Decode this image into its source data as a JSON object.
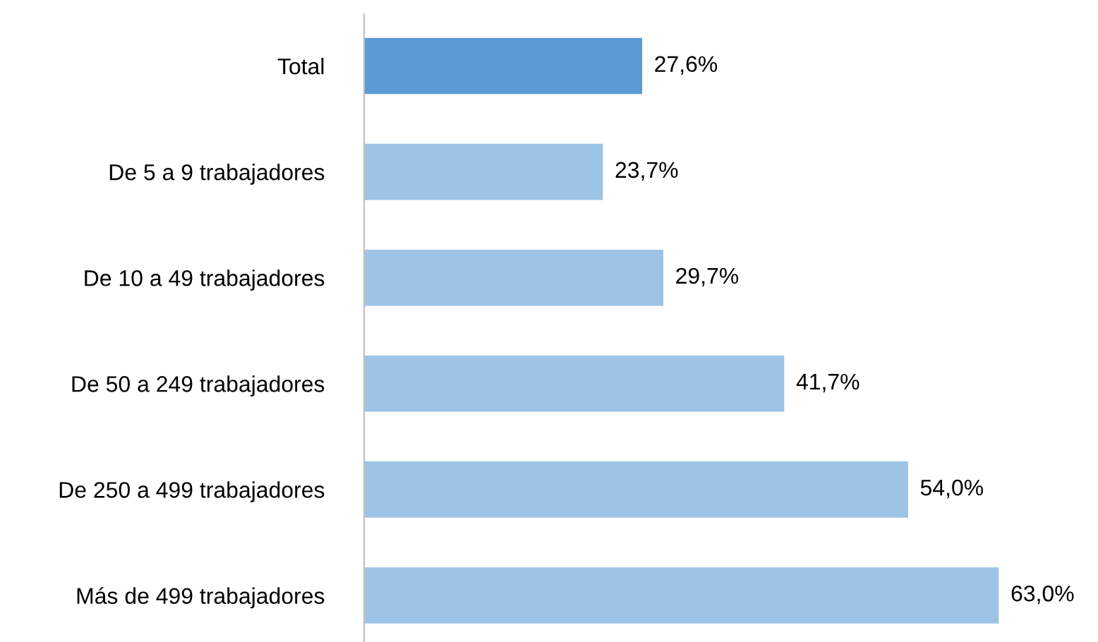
{
  "chart_data": {
    "type": "bar",
    "orientation": "horizontal",
    "categories": [
      "Total",
      "De 5 a 9 trabajadores",
      "De 10 a 49 trabajadores",
      "De 50 a 249 trabajadores",
      "De 250 a 499 trabajadores",
      "Más de 499 trabajadores"
    ],
    "values": [
      27.6,
      23.7,
      29.7,
      41.7,
      54.0,
      63.0
    ],
    "colors": [
      "#5b9bd5",
      "#9dc3e6",
      "#9dc3e6",
      "#9dc3e6",
      "#9dc3e6",
      "#9dc3e6"
    ],
    "value_labels": [
      "27,6%",
      "23,7%",
      "29,7%",
      "41,7%",
      "54,0%",
      "63,0%"
    ],
    "grid": false,
    "legend": false
  }
}
